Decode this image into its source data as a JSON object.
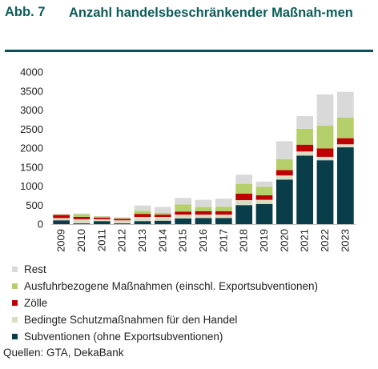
{
  "figure": {
    "number": "Abb. 7",
    "title": "Anzahl handelsbeschränkender Maßnah-men",
    "source": "Quellen: GTA, DekaBank"
  },
  "chart_data": {
    "type": "bar",
    "stacked": true,
    "categories": [
      "2009",
      "2010",
      "2011",
      "2012",
      "2013",
      "2014",
      "2015",
      "2016",
      "2017",
      "2018",
      "2019",
      "2020",
      "2021",
      "2022",
      "2023"
    ],
    "ylim": [
      0,
      4000
    ],
    "yticks": [
      0,
      500,
      1000,
      1500,
      2000,
      2500,
      3000,
      3500,
      4000
    ],
    "grid": false,
    "legend_position": "bottom",
    "series": [
      {
        "name": "Subventionen (ohne Exportsubventionen)",
        "color": "#0a3d4a",
        "values": [
          100,
          20,
          80,
          20,
          80,
          90,
          150,
          160,
          160,
          500,
          530,
          1170,
          1800,
          1680,
          2020
        ]
      },
      {
        "name": "Bedingte Schutzmaßnahmen für den Handel",
        "color": "#d8dcc2",
        "values": [
          60,
          110,
          50,
          80,
          110,
          100,
          100,
          90,
          90,
          130,
          110,
          110,
          110,
          90,
          80
        ]
      },
      {
        "name": "Zölle",
        "color": "#c00000",
        "values": [
          80,
          60,
          40,
          40,
          80,
          60,
          80,
          90,
          90,
          170,
          120,
          140,
          180,
          220,
          160
        ]
      },
      {
        "name": "Ausfuhrbezogene Maßnahmen (einschl. Exportsubventionen)",
        "color": "#b5cf6b",
        "values": [
          20,
          70,
          30,
          20,
          80,
          50,
          190,
          110,
          120,
          260,
          220,
          290,
          420,
          600,
          540
        ]
      },
      {
        "name": "Rest",
        "color": "#d9d9d9",
        "values": [
          10,
          20,
          10,
          20,
          140,
          150,
          170,
          190,
          210,
          240,
          140,
          470,
          330,
          820,
          680
        ]
      }
    ],
    "legend_order": [
      "Rest",
      "Ausfuhrbezogene Maßnahmen (einschl. Exportsubventionen)",
      "Zölle",
      "Bedingte Schutzmaßnahmen für den Handel",
      "Subventionen (ohne Exportsubventionen)"
    ]
  }
}
